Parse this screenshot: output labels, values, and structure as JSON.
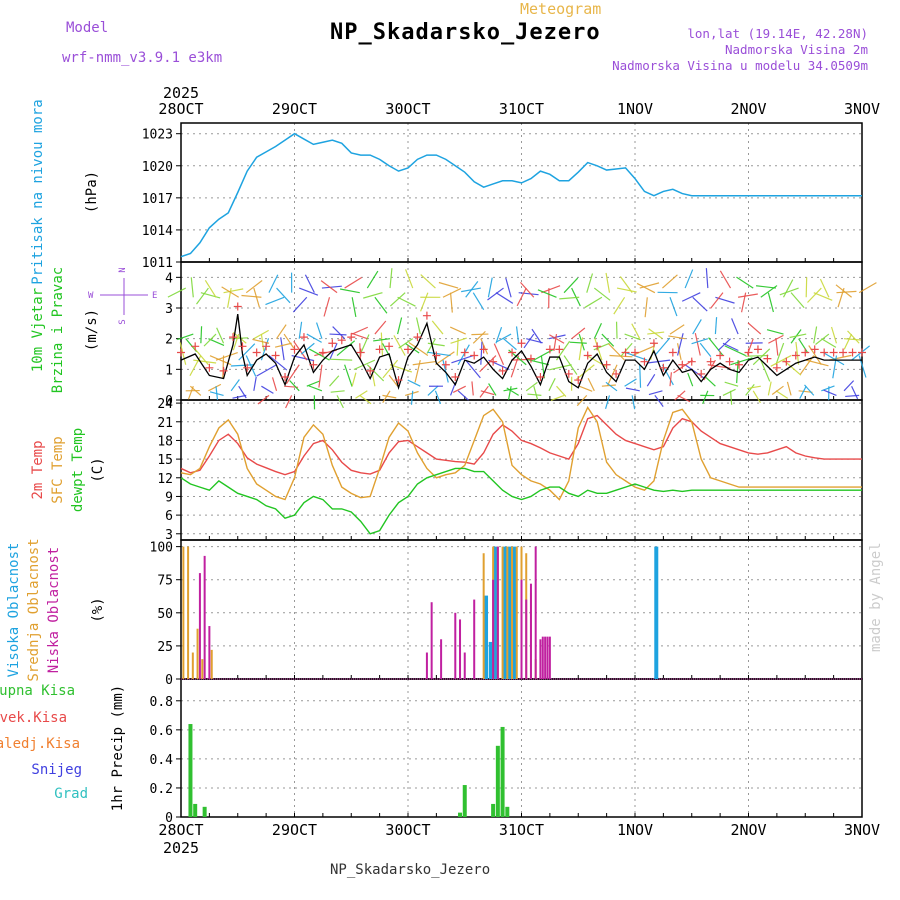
{
  "header": {
    "title": "NP_Skadarsko_Jezero",
    "subtitle": "Meteogram",
    "model_label": "Model",
    "model_name": "wrf-nmm_v3.9.1 e3km",
    "coords": "lon,lat (19.14E, 42.28N)",
    "elevation": "Nadmorska Visina 2m",
    "model_elevation": "Nadmorska Visina u modelu 34.0509m"
  },
  "footer": {
    "station": "NP_Skadarsko_Jezero",
    "credit": "made by Angel"
  },
  "colors": {
    "pressure": "#1ea3e0",
    "wind": "#22c522",
    "t2m": "#e84a4a",
    "tsfc": "#e0a030",
    "dewpt": "#22c522",
    "cloud_high": "#1ea3e0",
    "cloud_mid": "#e0a030",
    "cloud_low": "#c020a0",
    "precip_total": "#30c030",
    "precip_conv": "#e84a4a",
    "precip_frozen": "#f08030",
    "snow": "#4040e0",
    "hail": "#30c0c0"
  },
  "chart_data": [
    {
      "type": "line",
      "id": "pressure",
      "title": "Pritisak na nivou mora",
      "ylabel": "(hPa)",
      "ylim": [
        1011,
        1024
      ],
      "yticks": [
        "1011",
        "1014",
        "1017",
        "1020",
        "1023"
      ],
      "time_axis": {
        "top_year": "2025",
        "bottom_year": "2025",
        "labels": [
          "28OCT",
          "29OCT",
          "30OCT",
          "31OCT",
          "1NOV",
          "2NOV",
          "3NOV"
        ],
        "xlim_hours": [
          0,
          144
        ]
      },
      "series": [
        {
          "name": "Pritisak na nivou mora",
          "x": [
            0,
            2,
            4,
            6,
            8,
            10,
            12,
            14,
            16,
            18,
            20,
            22,
            24,
            26,
            28,
            30,
            32,
            34,
            36,
            38,
            40,
            42,
            44,
            46,
            48,
            50,
            52,
            54,
            56,
            58,
            60,
            62,
            64,
            66,
            68,
            70,
            72,
            74,
            76,
            78,
            80,
            82,
            84,
            86,
            88,
            90,
            92,
            94,
            96,
            98,
            100,
            102,
            104,
            106,
            108,
            110,
            112,
            114,
            116,
            118,
            120,
            122,
            124,
            126,
            128,
            130,
            132,
            134,
            136,
            138,
            140,
            142,
            144
          ],
          "values": [
            1011.5,
            1011.8,
            1012.8,
            1014.2,
            1015.0,
            1015.6,
            1017.5,
            1019.5,
            1020.8,
            1021.3,
            1021.8,
            1022.4,
            1023.0,
            1022.5,
            1022.0,
            1022.2,
            1022.4,
            1022.1,
            1021.2,
            1021.0,
            1021.0,
            1020.6,
            1020.0,
            1019.5,
            1019.8,
            1020.6,
            1021.0,
            1021.0,
            1020.6,
            1020.0,
            1019.4,
            1018.5,
            1018.0,
            1018.3,
            1018.6,
            1018.6,
            1018.4,
            1018.8,
            1019.5,
            1019.2,
            1018.6,
            1018.6,
            1019.4,
            1020.3,
            1020.0,
            1019.6,
            1019.7,
            1019.8,
            1018.8,
            1017.6,
            1017.2,
            1017.6,
            1017.8,
            1017.4,
            1017.2,
            1017.2,
            1017.2,
            1017.2,
            1017.2,
            1017.2,
            1017.2,
            1017.2,
            1017.2,
            1017.2,
            1017.2,
            1017.2,
            1017.2,
            1017.2,
            1017.2,
            1017.2,
            1017.2,
            1017.2,
            1017.2
          ]
        }
      ]
    },
    {
      "type": "line",
      "id": "wind",
      "title": "10m Vjetar Brzina i Pravac",
      "ylabel": "(m/s)",
      "ylim": [
        0,
        4.5
      ],
      "yticks": [
        "0",
        "1",
        "2",
        "3",
        "4"
      ],
      "legend": {
        "north": "N",
        "south": "S",
        "west": "W",
        "east": "E"
      },
      "series": [
        {
          "name": "Brzina",
          "x": [
            0,
            3,
            6,
            9,
            11,
            12,
            13,
            14,
            16,
            18,
            20,
            22,
            24,
            26,
            28,
            30,
            32,
            34,
            36,
            38,
            40,
            42,
            44,
            46,
            48,
            50,
            52,
            54,
            56,
            58,
            60,
            62,
            64,
            66,
            68,
            70,
            72,
            74,
            76,
            78,
            80,
            82,
            84,
            86,
            88,
            90,
            92,
            94,
            96,
            98,
            100,
            102,
            104,
            106,
            108,
            110,
            112,
            114,
            116,
            118,
            120,
            122,
            124,
            126,
            128,
            130,
            132,
            134,
            136,
            138,
            140,
            142,
            144
          ],
          "values": [
            1.3,
            1.5,
            0.8,
            0.7,
            1.8,
            2.8,
            1.5,
            0.8,
            1.3,
            1.5,
            1.2,
            0.5,
            1.4,
            1.8,
            0.9,
            1.3,
            1.6,
            1.7,
            1.8,
            1.3,
            0.7,
            1.4,
            1.5,
            0.4,
            1.4,
            1.8,
            2.5,
            1.2,
            0.9,
            0.5,
            1.3,
            1.2,
            1.4,
            1.0,
            0.7,
            1.3,
            1.6,
            1.1,
            0.5,
            1.4,
            1.4,
            0.6,
            0.4,
            1.2,
            1.5,
            0.9,
            0.6,
            1.3,
            1.3,
            1.0,
            1.6,
            0.8,
            1.3,
            0.9,
            1.0,
            0.6,
            1.0,
            1.2,
            1.0,
            0.9,
            1.3,
            1.4,
            1.1,
            0.8,
            1.0,
            1.2,
            1.3,
            1.4,
            1.3,
            1.3,
            1.3,
            1.3,
            1.3
          ]
        }
      ]
    },
    {
      "type": "line",
      "id": "temperature",
      "ylabel": "(C)",
      "ylim": [
        2,
        24.5
      ],
      "yticks": [
        "3",
        "6",
        "9",
        "12",
        "15",
        "18",
        "21",
        "24"
      ],
      "series": [
        {
          "name": "2m Temp",
          "x": [
            0,
            2,
            4,
            6,
            8,
            10,
            12,
            14,
            16,
            18,
            20,
            22,
            24,
            26,
            28,
            30,
            32,
            34,
            36,
            38,
            40,
            42,
            44,
            46,
            48,
            50,
            52,
            54,
            56,
            58,
            60,
            62,
            64,
            66,
            68,
            70,
            72,
            74,
            76,
            78,
            80,
            82,
            84,
            86,
            88,
            90,
            92,
            94,
            96,
            98,
            100,
            102,
            104,
            106,
            108,
            110,
            112,
            114,
            116,
            118,
            120,
            122,
            124,
            126,
            128,
            130,
            132,
            134,
            136,
            138,
            140,
            142,
            144
          ],
          "values": [
            13.5,
            12.8,
            13.2,
            15.5,
            18.0,
            19.0,
            17.5,
            15.2,
            14.2,
            13.6,
            13.0,
            12.5,
            13.0,
            15.5,
            17.5,
            18.0,
            16.5,
            14.5,
            13.2,
            12.8,
            12.6,
            13.2,
            16.0,
            17.8,
            18.0,
            17.0,
            16.0,
            15.0,
            14.8,
            14.6,
            14.5,
            14.2,
            16.0,
            19.0,
            20.5,
            19.5,
            18.0,
            17.5,
            16.8,
            16.0,
            15.5,
            15.0,
            17.5,
            21.5,
            22.0,
            20.5,
            19.0,
            18.0,
            17.5,
            17.0,
            16.5,
            17.0,
            20.0,
            21.5,
            21.0,
            19.5,
            18.5,
            17.5,
            17.0,
            16.5,
            16.0,
            15.8,
            16.0,
            16.5,
            17.0,
            16.0,
            15.5,
            15.2,
            15.0,
            15.0,
            15.0,
            15.0,
            15.0
          ]
        },
        {
          "name": "SFC Temp",
          "x": [
            0,
            2,
            4,
            6,
            8,
            10,
            12,
            14,
            16,
            18,
            20,
            22,
            24,
            26,
            28,
            30,
            32,
            34,
            36,
            38,
            40,
            42,
            44,
            46,
            48,
            50,
            52,
            54,
            56,
            58,
            60,
            62,
            64,
            66,
            68,
            70,
            72,
            74,
            76,
            78,
            80,
            82,
            84,
            86,
            88,
            90,
            92,
            94,
            96,
            98,
            100,
            102,
            104,
            106,
            108,
            110,
            112,
            114,
            116,
            118,
            120,
            122,
            124,
            126,
            128,
            130,
            132,
            134,
            136,
            138,
            140,
            142,
            144
          ],
          "values": [
            12.8,
            12.5,
            13.5,
            17.0,
            20.0,
            21.3,
            19.0,
            13.5,
            11.0,
            10.0,
            9.0,
            8.5,
            12.0,
            18.5,
            20.5,
            19.0,
            14.0,
            10.5,
            9.5,
            8.8,
            9.0,
            13.5,
            18.5,
            20.8,
            19.5,
            16.0,
            13.5,
            12.0,
            12.5,
            12.8,
            14.0,
            18.0,
            22.0,
            23.0,
            21.0,
            14.0,
            12.5,
            11.5,
            11.0,
            10.0,
            8.5,
            11.5,
            20.0,
            23.3,
            21.0,
            14.5,
            12.5,
            11.5,
            10.5,
            10.0,
            11.5,
            18.0,
            22.5,
            23.0,
            21.0,
            15.0,
            12.0,
            11.5,
            11.0,
            10.5,
            10.5,
            10.5,
            10.5,
            10.5,
            10.5,
            10.5,
            10.5,
            10.5,
            10.5,
            10.5,
            10.5,
            10.5,
            10.5
          ]
        },
        {
          "name": "dewpt Temp",
          "x": [
            0,
            2,
            4,
            6,
            8,
            10,
            12,
            14,
            16,
            18,
            20,
            22,
            24,
            26,
            28,
            30,
            32,
            34,
            36,
            38,
            40,
            42,
            44,
            46,
            48,
            50,
            52,
            54,
            56,
            58,
            60,
            62,
            64,
            66,
            68,
            70,
            72,
            74,
            76,
            78,
            80,
            82,
            84,
            86,
            88,
            90,
            92,
            94,
            96,
            98,
            100,
            102,
            104,
            106,
            108,
            110,
            112,
            114,
            116,
            118,
            120,
            122,
            124,
            126,
            128,
            130,
            132,
            134,
            136,
            138,
            140,
            142,
            144
          ],
          "values": [
            12.0,
            11.0,
            10.5,
            10.0,
            11.5,
            10.5,
            9.5,
            9.0,
            8.5,
            7.5,
            7.0,
            5.5,
            6.0,
            8.0,
            9.0,
            8.5,
            7.0,
            7.0,
            6.5,
            5.0,
            3.0,
            3.5,
            6.0,
            8.0,
            9.0,
            11.0,
            12.0,
            12.5,
            13.0,
            13.5,
            13.5,
            13.0,
            13.0,
            11.5,
            10.0,
            9.0,
            8.5,
            9.0,
            10.0,
            10.5,
            10.5,
            9.5,
            9.0,
            10.0,
            9.5,
            9.5,
            10.0,
            10.5,
            11.0,
            10.5,
            10.0,
            9.8,
            10.0,
            9.8,
            10.0,
            10.0,
            10.0,
            10.0,
            10.0,
            10.0,
            10.0,
            10.0,
            10.0,
            10.0,
            10.0,
            10.0,
            10.0,
            10.0,
            10.0,
            10.0,
            10.0,
            10.0,
            10.0
          ]
        }
      ]
    },
    {
      "type": "bar",
      "id": "clouds",
      "ylabel": "(%)",
      "ylim": [
        0,
        105
      ],
      "yticks": [
        "0",
        "25",
        "50",
        "75",
        "100"
      ],
      "series": [
        {
          "name": "Visoka Oblacnost",
          "x": [
            64.5,
            65.5,
            66.5,
            68.5,
            69.5,
            70.5,
            100.5
          ],
          "values": [
            63,
            28,
            100,
            100,
            100,
            100,
            100
          ]
        },
        {
          "name": "Srednja Oblacnost",
          "x": [
            0.5,
            1.5,
            2.5,
            3.5,
            4.5,
            6.5,
            64,
            66,
            67,
            68,
            69,
            70,
            71,
            72,
            73,
            74,
            75
          ],
          "values": [
            100,
            100,
            20,
            38,
            15,
            22,
            95,
            100,
            100,
            100,
            100,
            100,
            100,
            100,
            95,
            65,
            15
          ]
        },
        {
          "name": "Niska Oblacnost",
          "x": [
            4,
            5,
            6,
            52,
            53,
            55,
            58,
            59,
            60,
            62,
            66,
            67,
            72,
            73,
            74,
            75,
            76,
            76.5,
            77,
            77.5,
            78
          ],
          "values": [
            80,
            93,
            40,
            20,
            58,
            30,
            50,
            45,
            20,
            60,
            75,
            100,
            75,
            60,
            72,
            100,
            30,
            32,
            32,
            32,
            32
          ]
        }
      ]
    },
    {
      "type": "bar",
      "id": "precip",
      "ylabel": "1hr Precip (mm)",
      "ylim": [
        0,
        0.95
      ],
      "yticks": [
        "0",
        "0.2",
        "0.4",
        "0.6",
        "0.8"
      ],
      "series": [
        {
          "name": "Ukupna Kisa",
          "x": [
            2,
            3,
            5,
            59,
            60,
            66,
            67,
            68,
            69
          ],
          "values": [
            0.64,
            0.09,
            0.07,
            0.03,
            0.22,
            0.09,
            0.49,
            0.62,
            0.07
          ]
        },
        {
          "name": "Konvek.Kisa",
          "x": [],
          "values": []
        },
        {
          "name": "Zaledj.Kisa",
          "x": [],
          "values": []
        },
        {
          "name": "Snijeg",
          "x": [],
          "values": []
        },
        {
          "name": "Grad",
          "x": [],
          "values": []
        }
      ]
    }
  ]
}
